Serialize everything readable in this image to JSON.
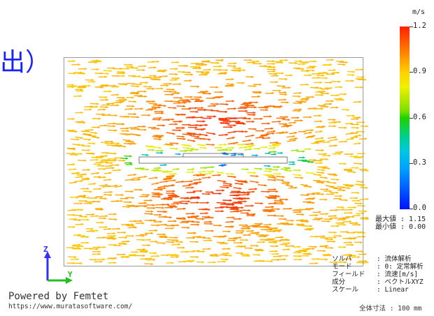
{
  "title_fragment": "出）",
  "colorbar": {
    "unit": "m/s",
    "ticks": [
      "1.2",
      "0.9",
      "0.6",
      "0.3",
      "0.0"
    ],
    "tick_values": [
      1.2,
      0.9,
      0.6,
      0.3,
      0.0
    ],
    "colors": [
      "#ff2000",
      "#ffd000",
      "#20d000",
      "#00a0ff",
      "#0010ff"
    ]
  },
  "stats": {
    "max": "最大値 : 1.15",
    "min": "最小値 : 0.00"
  },
  "info": [
    {
      "key": "ソルバ",
      "value": ": 流体解析"
    },
    {
      "key": "モード",
      "value": ": 0: 定常解析"
    },
    {
      "key": "フィールド",
      "value": ": 流速[m/s]"
    },
    {
      "key": "成分",
      "value": ": ベクトルXYZ"
    },
    {
      "key": "スケール",
      "value": ": Linear"
    }
  ],
  "branding": {
    "powered": "Powered by Femtet",
    "url": "https://www.muratasoftware.com/"
  },
  "dimension_note": "全体寸法 : 100 mm",
  "axes": {
    "z_label": "Z",
    "y_label": "Y",
    "z_color": "#3030ff",
    "y_color": "#20c020"
  }
}
